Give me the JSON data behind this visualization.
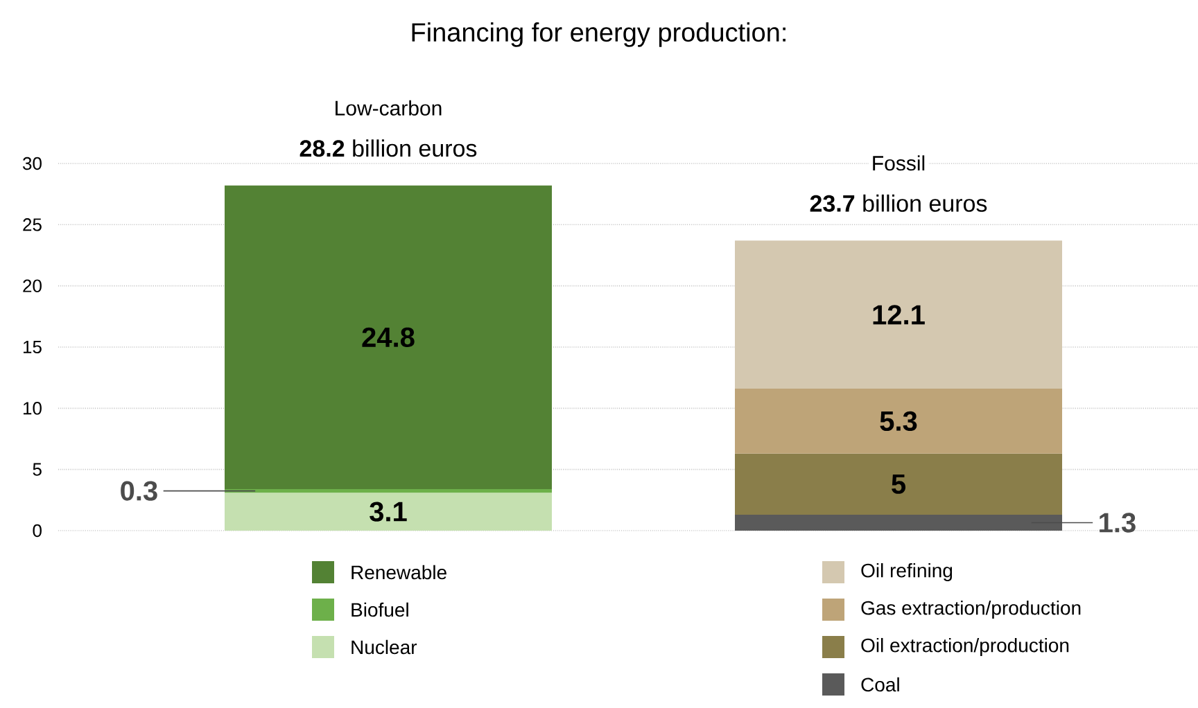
{
  "chart_data": {
    "type": "bar",
    "stacked": true,
    "title": "Financing for energy production:",
    "categories": [
      "Low-carbon",
      "Fossil"
    ],
    "totals": [
      "**28.2** billion euros",
      "**23.7** billion euros"
    ],
    "ylim": [
      0,
      30
    ],
    "yticks": [
      0,
      5,
      10,
      15,
      20,
      25,
      30
    ],
    "grid": "y",
    "legend": "bottom",
    "data_labels": true,
    "series": [
      {
        "name": "Nuclear",
        "color": "#c5e0b0",
        "values": [
          3.1,
          null
        ]
      },
      {
        "name": "Biofuel",
        "color": "#6db04a",
        "values": [
          0.3,
          null
        ]
      },
      {
        "name": "Renewable",
        "color": "#538234",
        "values": [
          24.8,
          null
        ]
      },
      {
        "name": "Coal",
        "color": "#5a5a5a",
        "values": [
          null,
          1.3
        ]
      },
      {
        "name": "Oil extraction/production",
        "color": "#8a7e4a",
        "values": [
          null,
          5
        ]
      },
      {
        "name": "Gas extraction/production",
        "color": "#bea478",
        "values": [
          null,
          5.3
        ]
      },
      {
        "name": "Oil refining",
        "color": "#d4c8b0",
        "values": [
          null,
          12.1
        ]
      }
    ]
  }
}
